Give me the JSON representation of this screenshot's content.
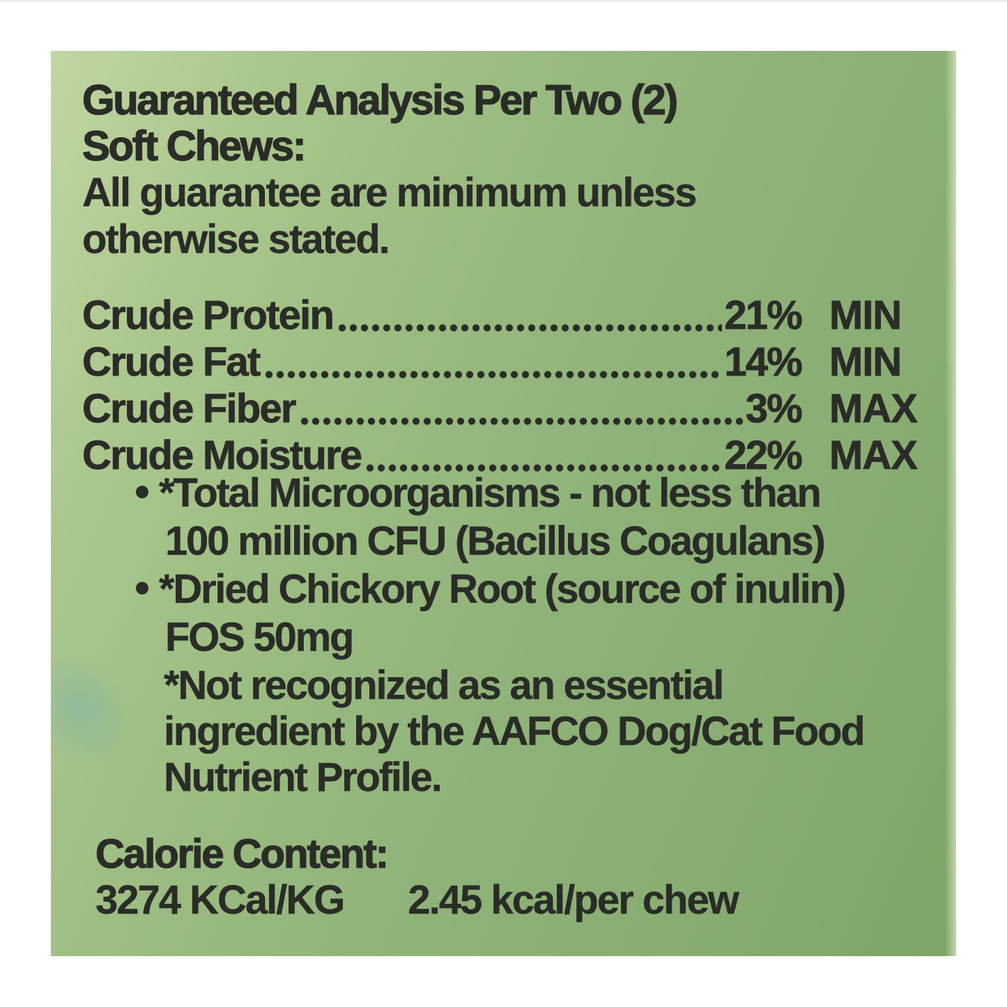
{
  "label": {
    "heading_line1": "Guaranteed Analysis Per Two (2)",
    "heading_line2": "Soft Chews:",
    "note_line1": "All guarantee are minimum unless",
    "note_line2": "otherwise stated.",
    "analysis": {
      "rows": [
        {
          "name": "Crude Protein",
          "value": "21%",
          "limit": "MIN"
        },
        {
          "name": "Crude Fat",
          "value": "14%",
          "limit": "MIN"
        },
        {
          "name": "Crude Fiber",
          "value": "3%",
          "limit": "MAX"
        },
        {
          "name": "Crude Moisture",
          "value": "22%",
          "limit": "MAX"
        }
      ]
    },
    "bullets": [
      {
        "line1": "*Total Microorganisms - not less than",
        "line2": "100 million CFU (Bacillus Coagulans)"
      },
      {
        "line1": "*Dried Chickory Root (source of inulin)",
        "line2": "FOS 50mg"
      }
    ],
    "footnote_line1": "*Not recognized as an essential",
    "footnote_line2": "ingredient by the AAFCO Dog/Cat Food",
    "footnote_line3": "Nutrient Profile.",
    "calorie": {
      "heading": "Calorie Content:",
      "per_kg": "3274 KCal/KG",
      "per_chew": "2.45 kcal/per chew"
    },
    "colors": {
      "label_green_light": "#c0d6a2",
      "label_green_dark": "#7ea468",
      "ink": "#2a2d27",
      "page_white": "#ffffff"
    }
  }
}
